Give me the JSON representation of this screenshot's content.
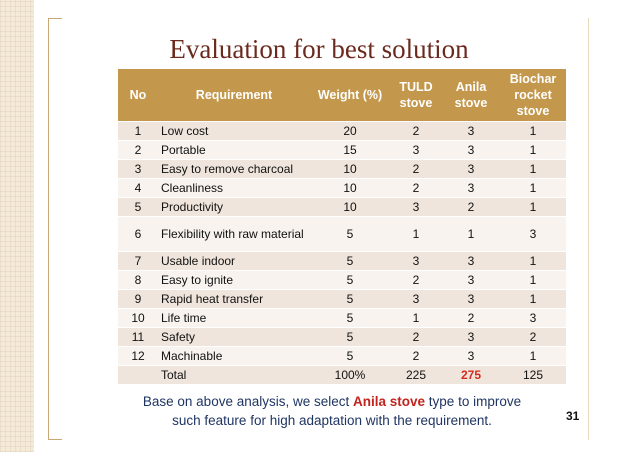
{
  "slide": {
    "title": "Evaluation for best solution",
    "page_number": "31"
  },
  "table": {
    "headers": [
      {
        "key": "no",
        "label": "No"
      },
      {
        "key": "requirement",
        "label": "Requirement"
      },
      {
        "key": "weight",
        "label": "Weight (%)"
      },
      {
        "key": "tuld",
        "label": "TULD stove"
      },
      {
        "key": "anila",
        "label": "Anila stove"
      },
      {
        "key": "biochar",
        "label": "Biochar rocket stove"
      }
    ],
    "rows": [
      {
        "no": "1",
        "requirement": "Low cost",
        "weight": "20",
        "tuld": "2",
        "anila": "3",
        "biochar": "1"
      },
      {
        "no": "2",
        "requirement": "Portable",
        "weight": "15",
        "tuld": "3",
        "anila": "3",
        "biochar": "1"
      },
      {
        "no": "3",
        "requirement": "Easy to remove charcoal",
        "weight": "10",
        "tuld": "2",
        "anila": "3",
        "biochar": "1"
      },
      {
        "no": "4",
        "requirement": "Cleanliness",
        "weight": "10",
        "tuld": "2",
        "anila": "3",
        "biochar": "1"
      },
      {
        "no": "5",
        "requirement": "Productivity",
        "weight": "10",
        "tuld": "3",
        "anila": "2",
        "biochar": "1"
      },
      {
        "no": "6",
        "requirement": "Flexibility with raw material",
        "weight": "5",
        "tuld": "1",
        "anila": "1",
        "biochar": "3"
      },
      {
        "no": "7",
        "requirement": "Usable indoor",
        "weight": "5",
        "tuld": "3",
        "anila": "3",
        "biochar": "1"
      },
      {
        "no": "8",
        "requirement": "Easy to ignite",
        "weight": "5",
        "tuld": "2",
        "anila": "3",
        "biochar": "1"
      },
      {
        "no": "9",
        "requirement": "Rapid heat transfer",
        "weight": "5",
        "tuld": "3",
        "anila": "3",
        "biochar": "1"
      },
      {
        "no": "10",
        "requirement": "Life time",
        "weight": "5",
        "tuld": "1",
        "anila": "2",
        "biochar": "3"
      },
      {
        "no": "11",
        "requirement": "Safety",
        "weight": "5",
        "tuld": "2",
        "anila": "3",
        "biochar": "2"
      },
      {
        "no": "12",
        "requirement": "Machinable",
        "weight": "5",
        "tuld": "2",
        "anila": "3",
        "biochar": "1"
      }
    ],
    "total": {
      "no": "",
      "requirement": "Total",
      "weight": "100%",
      "tuld": "225",
      "anila": "275",
      "biochar": "125"
    }
  },
  "note": {
    "before": "Base on above analysis, we select ",
    "highlight": "Anila stove",
    "after": " type to improve such feature for high adaptation with the requirement."
  },
  "colors": {
    "title": "#6b2a1e",
    "header_bg": "#c3974c",
    "row_odd": "#efe5dc",
    "row_even": "#f8f3ee",
    "highlight": "#d42a1e",
    "note_text": "#1f3563"
  }
}
